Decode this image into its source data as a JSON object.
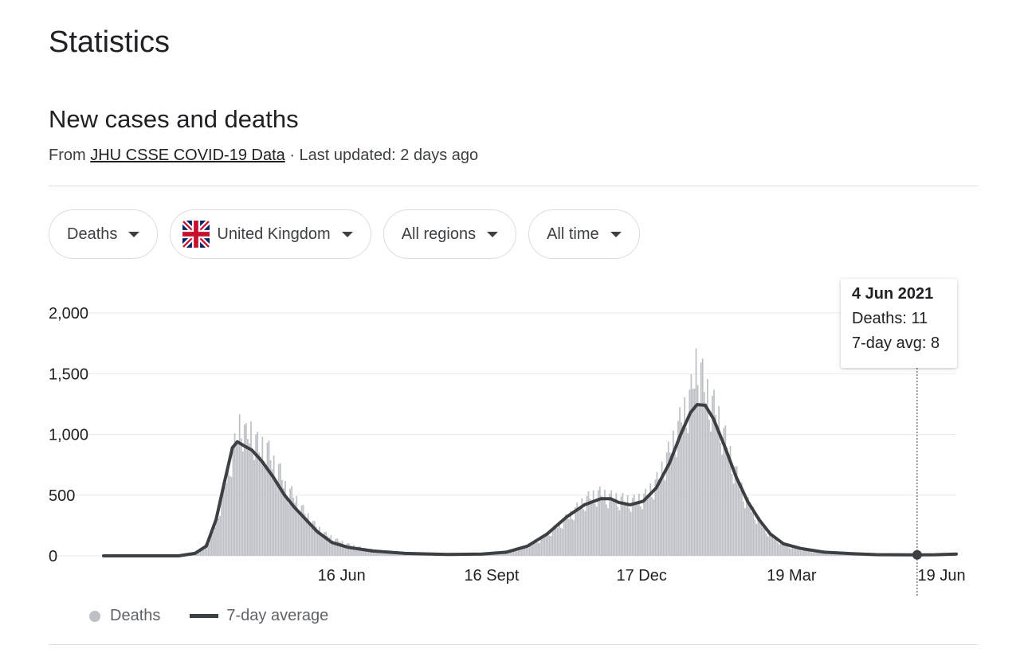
{
  "page_title": "Statistics",
  "section_title": "New cases and deaths",
  "source": {
    "prefix": "From",
    "link_text": "JHU CSSE COVID-19 Data",
    "suffix": "· Last updated: 2 days ago"
  },
  "filters": [
    {
      "label": "Deaths"
    },
    {
      "label": "United Kingdom",
      "icon": "uk-flag-icon"
    },
    {
      "label": "All regions"
    },
    {
      "label": "All time"
    }
  ],
  "tooltip": {
    "date": "4 Jun 2021",
    "deaths": "Deaths: 11",
    "avg": "7-day avg: 8"
  },
  "legend": {
    "deaths": "Deaths",
    "avg": "7-day average"
  },
  "colors": {
    "bars": "#bdc1c6",
    "average_line": "#3c4043",
    "grid": "#e8eaed",
    "text": "#202124"
  },
  "chart_data": {
    "type": "bar",
    "title": "",
    "xlabel": "",
    "ylabel": "",
    "ylim": [
      0,
      2000
    ],
    "y_ticks": [
      "0",
      "500",
      "1,000",
      "1,500",
      "2,000"
    ],
    "y_tick_values": [
      0,
      500,
      1000,
      1500,
      2000
    ],
    "x_ticks": [
      "16 Jun",
      "16 Sept",
      "17 Dec",
      "19 Mar",
      "19 Jun"
    ],
    "x_range": [
      "2020-01-22",
      "2021-06-28"
    ],
    "x_tick_dates": [
      "2020-06-16",
      "2020-09-16",
      "2020-12-17",
      "2021-03-19",
      "2021-06-19"
    ],
    "highlight": {
      "date": "2021-06-04",
      "deaths": 11,
      "avg": 8
    },
    "series": [
      {
        "name": "Deaths",
        "kind": "bar",
        "points": [
          [
            "2020-03-10",
            0
          ],
          [
            "2020-03-20",
            30
          ],
          [
            "2020-03-28",
            150
          ],
          [
            "2020-04-03",
            450
          ],
          [
            "2020-04-08",
            750
          ],
          [
            "2020-04-12",
            920
          ],
          [
            "2020-04-15",
            1100
          ],
          [
            "2020-04-18",
            950
          ],
          [
            "2020-04-22",
            1000
          ],
          [
            "2020-04-26",
            850
          ],
          [
            "2020-04-30",
            900
          ],
          [
            "2020-05-04",
            750
          ],
          [
            "2020-05-08",
            700
          ],
          [
            "2020-05-12",
            550
          ],
          [
            "2020-05-16",
            500
          ],
          [
            "2020-05-20",
            420
          ],
          [
            "2020-05-25",
            330
          ],
          [
            "2020-05-30",
            250
          ],
          [
            "2020-06-05",
            180
          ],
          [
            "2020-06-12",
            130
          ],
          [
            "2020-06-20",
            90
          ],
          [
            "2020-06-30",
            60
          ],
          [
            "2020-07-15",
            30
          ],
          [
            "2020-08-01",
            15
          ],
          [
            "2020-08-20",
            10
          ],
          [
            "2020-09-10",
            12
          ],
          [
            "2020-09-25",
            25
          ],
          [
            "2020-10-05",
            60
          ],
          [
            "2020-10-15",
            130
          ],
          [
            "2020-10-25",
            230
          ],
          [
            "2020-11-03",
            330
          ],
          [
            "2020-11-12",
            450
          ],
          [
            "2020-11-20",
            500
          ],
          [
            "2020-11-28",
            470
          ],
          [
            "2020-12-05",
            450
          ],
          [
            "2020-12-12",
            440
          ],
          [
            "2020-12-19",
            480
          ],
          [
            "2020-12-26",
            600
          ],
          [
            "2021-01-03",
            850
          ],
          [
            "2021-01-10",
            1100
          ],
          [
            "2021-01-16",
            1300
          ],
          [
            "2021-01-20",
            1600
          ],
          [
            "2021-01-24",
            1350
          ],
          [
            "2021-01-28",
            1250
          ],
          [
            "2021-02-02",
            1100
          ],
          [
            "2021-02-08",
            850
          ],
          [
            "2021-02-14",
            600
          ],
          [
            "2021-02-20",
            420
          ],
          [
            "2021-02-27",
            280
          ],
          [
            "2021-03-06",
            160
          ],
          [
            "2021-03-14",
            90
          ],
          [
            "2021-03-24",
            50
          ],
          [
            "2021-04-05",
            25
          ],
          [
            "2021-04-20",
            15
          ],
          [
            "2021-05-05",
            10
          ],
          [
            "2021-05-20",
            8
          ],
          [
            "2021-06-04",
            11
          ],
          [
            "2021-06-15",
            10
          ],
          [
            "2021-06-28",
            18
          ]
        ]
      },
      {
        "name": "7-day average",
        "kind": "line",
        "points": [
          [
            "2020-01-22",
            0
          ],
          [
            "2020-03-08",
            0
          ],
          [
            "2020-03-18",
            20
          ],
          [
            "2020-03-25",
            80
          ],
          [
            "2020-03-31",
            300
          ],
          [
            "2020-04-05",
            600
          ],
          [
            "2020-04-10",
            890
          ],
          [
            "2020-04-13",
            940
          ],
          [
            "2020-04-18",
            900
          ],
          [
            "2020-04-22",
            870
          ],
          [
            "2020-04-28",
            780
          ],
          [
            "2020-05-05",
            650
          ],
          [
            "2020-05-12",
            500
          ],
          [
            "2020-05-18",
            400
          ],
          [
            "2020-05-25",
            300
          ],
          [
            "2020-06-01",
            200
          ],
          [
            "2020-06-10",
            110
          ],
          [
            "2020-06-20",
            70
          ],
          [
            "2020-07-05",
            40
          ],
          [
            "2020-07-25",
            20
          ],
          [
            "2020-08-20",
            12
          ],
          [
            "2020-09-10",
            15
          ],
          [
            "2020-09-25",
            30
          ],
          [
            "2020-10-08",
            80
          ],
          [
            "2020-10-20",
            180
          ],
          [
            "2020-11-01",
            320
          ],
          [
            "2020-11-12",
            420
          ],
          [
            "2020-11-22",
            470
          ],
          [
            "2020-11-28",
            470
          ],
          [
            "2020-12-03",
            440
          ],
          [
            "2020-12-10",
            420
          ],
          [
            "2020-12-18",
            450
          ],
          [
            "2020-12-26",
            560
          ],
          [
            "2021-01-03",
            760
          ],
          [
            "2021-01-10",
            1000
          ],
          [
            "2021-01-16",
            1180
          ],
          [
            "2021-01-20",
            1245
          ],
          [
            "2021-01-25",
            1240
          ],
          [
            "2021-01-30",
            1130
          ],
          [
            "2021-02-06",
            900
          ],
          [
            "2021-02-13",
            650
          ],
          [
            "2021-02-20",
            450
          ],
          [
            "2021-02-27",
            300
          ],
          [
            "2021-03-06",
            180
          ],
          [
            "2021-03-14",
            100
          ],
          [
            "2021-03-25",
            60
          ],
          [
            "2021-04-08",
            30
          ],
          [
            "2021-04-25",
            18
          ],
          [
            "2021-05-10",
            10
          ],
          [
            "2021-06-04",
            8
          ],
          [
            "2021-06-15",
            9
          ],
          [
            "2021-06-28",
            15
          ]
        ]
      }
    ]
  }
}
